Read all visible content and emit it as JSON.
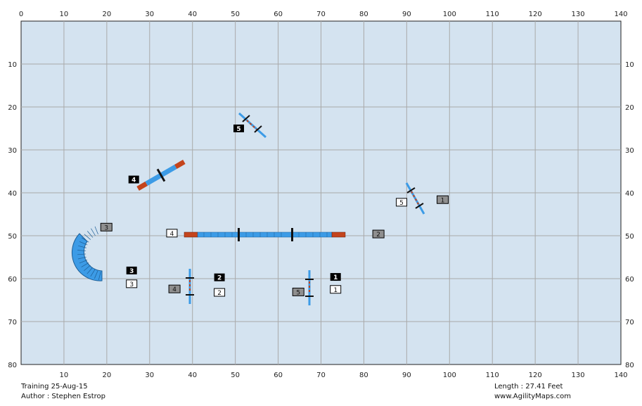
{
  "map": {
    "x_ticks": [
      "0",
      "10",
      "20",
      "30",
      "40",
      "50",
      "60",
      "70",
      "80",
      "90",
      "100",
      "110",
      "120",
      "130",
      "140"
    ],
    "y_ticks": [
      "0",
      "10",
      "20",
      "30",
      "40",
      "50",
      "60",
      "70",
      "80"
    ],
    "colors": {
      "field": "#d4e3f0",
      "grid": "#a9a9a9",
      "blue": "#3c9be6",
      "red": "#c4441c",
      "black_marker": "#000000",
      "gray_marker": "#8f8f8f",
      "white_marker": "#ffffff"
    }
  },
  "markers": [
    {
      "text": "5",
      "style": "black",
      "x": 50.8,
      "y": 25.0
    },
    {
      "text": "4",
      "style": "black",
      "x": 26.3,
      "y": 36.9
    },
    {
      "text": "5",
      "style": "white",
      "x": 88.8,
      "y": 42.2
    },
    {
      "text": "1",
      "style": "gray",
      "x": 98.4,
      "y": 41.6
    },
    {
      "text": "3",
      "style": "gray",
      "x": 19.9,
      "y": 48.0
    },
    {
      "text": "4",
      "style": "white",
      "x": 35.2,
      "y": 49.4
    },
    {
      "text": "2",
      "style": "gray",
      "x": 83.4,
      "y": 49.6
    },
    {
      "text": "3",
      "style": "black",
      "x": 25.8,
      "y": 58.1
    },
    {
      "text": "3",
      "style": "white",
      "x": 25.8,
      "y": 61.2
    },
    {
      "text": "4",
      "style": "gray",
      "x": 35.8,
      "y": 62.4
    },
    {
      "text": "2",
      "style": "black",
      "x": 46.3,
      "y": 59.7
    },
    {
      "text": "2",
      "style": "white",
      "x": 46.3,
      "y": 63.2
    },
    {
      "text": "1",
      "style": "black",
      "x": 73.4,
      "y": 59.6
    },
    {
      "text": "1",
      "style": "white",
      "x": 73.4,
      "y": 62.5
    },
    {
      "text": "5",
      "style": "gray",
      "x": 64.7,
      "y": 63.1
    }
  ],
  "footer": {
    "title": "Training 25-Aug-15",
    "author": "Author : Stephen Estrop",
    "length": "Length : 27.41 Feet",
    "website": "www.AgilityMaps.com"
  }
}
